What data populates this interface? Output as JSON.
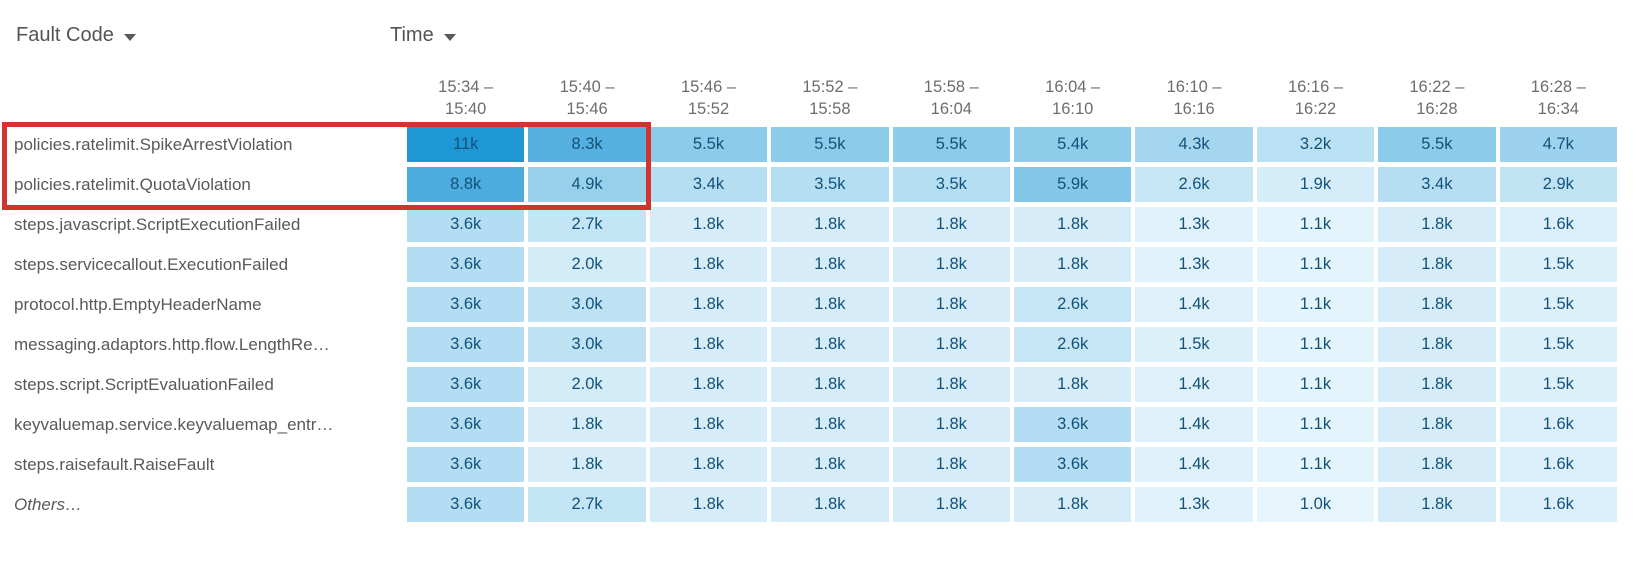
{
  "controls": {
    "fault_code_label": "Fault Code",
    "time_label": "Time",
    "caret_icon": "chevron-down"
  },
  "chart_data": {
    "type": "heatmap",
    "x_axis_label": "Time",
    "y_axis_label": "Fault Code",
    "value_suffix": "k",
    "unit": "thousands of errors",
    "columns": [
      {
        "from": "15:34",
        "to": "15:40"
      },
      {
        "from": "15:40",
        "to": "15:46"
      },
      {
        "from": "15:46",
        "to": "15:52"
      },
      {
        "from": "15:52",
        "to": "15:58"
      },
      {
        "from": "15:58",
        "to": "16:04"
      },
      {
        "from": "16:04",
        "to": "16:10"
      },
      {
        "from": "16:10",
        "to": "16:16"
      },
      {
        "from": "16:16",
        "to": "16:22"
      },
      {
        "from": "16:22",
        "to": "16:28"
      },
      {
        "from": "16:28",
        "to": "16:34"
      }
    ],
    "rows": [
      {
        "label": "policies.ratelimit.SpikeArrestViolation",
        "values": [
          11,
          8.3,
          5.5,
          5.5,
          5.5,
          5.4,
          4.3,
          3.2,
          5.5,
          4.7
        ]
      },
      {
        "label": "policies.ratelimit.QuotaViolation",
        "values": [
          8.8,
          4.9,
          3.4,
          3.5,
          3.5,
          5.9,
          2.6,
          1.9,
          3.4,
          2.9
        ]
      },
      {
        "label": "steps.javascript.ScriptExecutionFailed",
        "values": [
          3.6,
          2.7,
          1.8,
          1.8,
          1.8,
          1.8,
          1.3,
          1.1,
          1.8,
          1.6
        ]
      },
      {
        "label": "steps.servicecallout.ExecutionFailed",
        "values": [
          3.6,
          2.0,
          1.8,
          1.8,
          1.8,
          1.8,
          1.3,
          1.1,
          1.8,
          1.5
        ]
      },
      {
        "label": "protocol.http.EmptyHeaderName",
        "values": [
          3.6,
          3.0,
          1.8,
          1.8,
          1.8,
          2.6,
          1.4,
          1.1,
          1.8,
          1.5
        ]
      },
      {
        "label": "messaging.adaptors.http.flow.LengthRe…",
        "values": [
          3.6,
          3.0,
          1.8,
          1.8,
          1.8,
          2.6,
          1.5,
          1.1,
          1.8,
          1.5
        ]
      },
      {
        "label": "steps.script.ScriptEvaluationFailed",
        "values": [
          3.6,
          2.0,
          1.8,
          1.8,
          1.8,
          1.8,
          1.4,
          1.1,
          1.8,
          1.5
        ]
      },
      {
        "label": "keyvaluemap.service.keyvaluemap_entr…",
        "values": [
          3.6,
          1.8,
          1.8,
          1.8,
          1.8,
          3.6,
          1.4,
          1.1,
          1.8,
          1.6
        ]
      },
      {
        "label": "steps.raisefault.RaiseFault",
        "values": [
          3.6,
          1.8,
          1.8,
          1.8,
          1.8,
          3.6,
          1.4,
          1.1,
          1.8,
          1.6
        ]
      },
      {
        "label": "Others…",
        "italic": true,
        "values": [
          3.6,
          2.7,
          1.8,
          1.8,
          1.8,
          1.8,
          1.3,
          1.0,
          1.8,
          1.6
        ]
      }
    ],
    "color_scale": {
      "min_value": 1.0,
      "max_value": 11,
      "min_color": "#e6f5fc",
      "max_color": "#1f97d4"
    },
    "cell_text_color": "#12527a",
    "highlight_box": {
      "color": "#d0342c",
      "row_labels": [
        "policies.ratelimit.SpikeArrestViolation",
        "policies.ratelimit.QuotaViolation"
      ],
      "column_range": [
        "15:34 – 15:40",
        "15:40 – 15:46"
      ]
    }
  }
}
